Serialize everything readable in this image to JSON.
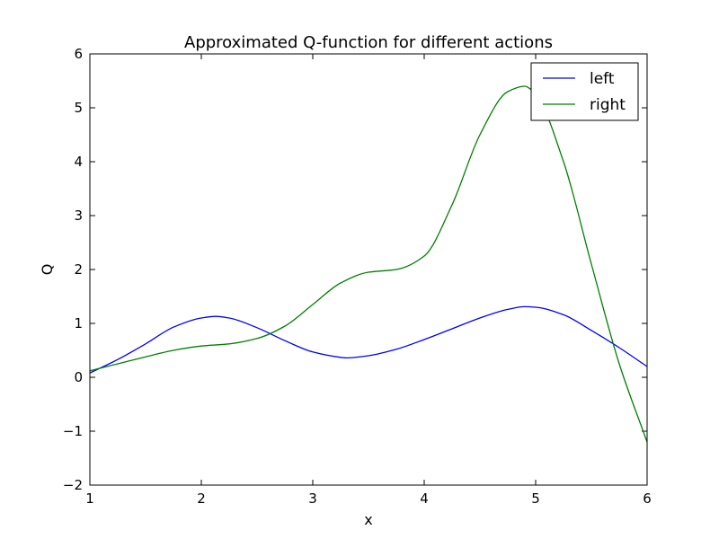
{
  "chart_data": {
    "type": "line",
    "title": "Approximated Q-function for different actions",
    "xlabel": "x",
    "ylabel": "Q",
    "xlim": [
      1,
      6
    ],
    "ylim": [
      -2,
      6
    ],
    "xticks": [
      "1",
      "2",
      "3",
      "4",
      "5",
      "6"
    ],
    "yticks": [
      "−2",
      "−1",
      "0",
      "1",
      "2",
      "3",
      "4",
      "5",
      "6"
    ],
    "grid": false,
    "legend_position": "top-right",
    "series": [
      {
        "name": "left",
        "color": "#0000ff",
        "x": [
          1.0,
          1.25,
          1.5,
          1.75,
          2.0,
          2.13,
          2.25,
          2.5,
          2.75,
          3.0,
          3.25,
          3.3,
          3.5,
          3.75,
          4.0,
          4.25,
          4.5,
          4.75,
          4.9,
          5.0,
          5.25,
          5.5,
          5.75,
          6.0
        ],
        "y": [
          0.08,
          0.33,
          0.62,
          0.93,
          1.1,
          1.13,
          1.1,
          0.92,
          0.68,
          0.47,
          0.37,
          0.36,
          0.4,
          0.52,
          0.7,
          0.9,
          1.1,
          1.26,
          1.31,
          1.3,
          1.16,
          0.87,
          0.55,
          0.2
        ]
      },
      {
        "name": "right",
        "color": "#008000",
        "x": [
          1.0,
          1.25,
          1.5,
          1.75,
          2.0,
          2.25,
          2.5,
          2.75,
          3.0,
          3.25,
          3.5,
          3.75,
          4.0,
          4.25,
          4.5,
          4.75,
          4.9,
          5.0,
          5.25,
          5.5,
          5.75,
          6.0
        ],
        "y": [
          0.12,
          0.25,
          0.38,
          0.5,
          0.58,
          0.62,
          0.72,
          0.95,
          1.35,
          1.75,
          1.95,
          2.0,
          2.25,
          3.2,
          4.5,
          5.3,
          5.4,
          5.25,
          4.0,
          2.1,
          0.25,
          -1.2
        ]
      }
    ]
  }
}
